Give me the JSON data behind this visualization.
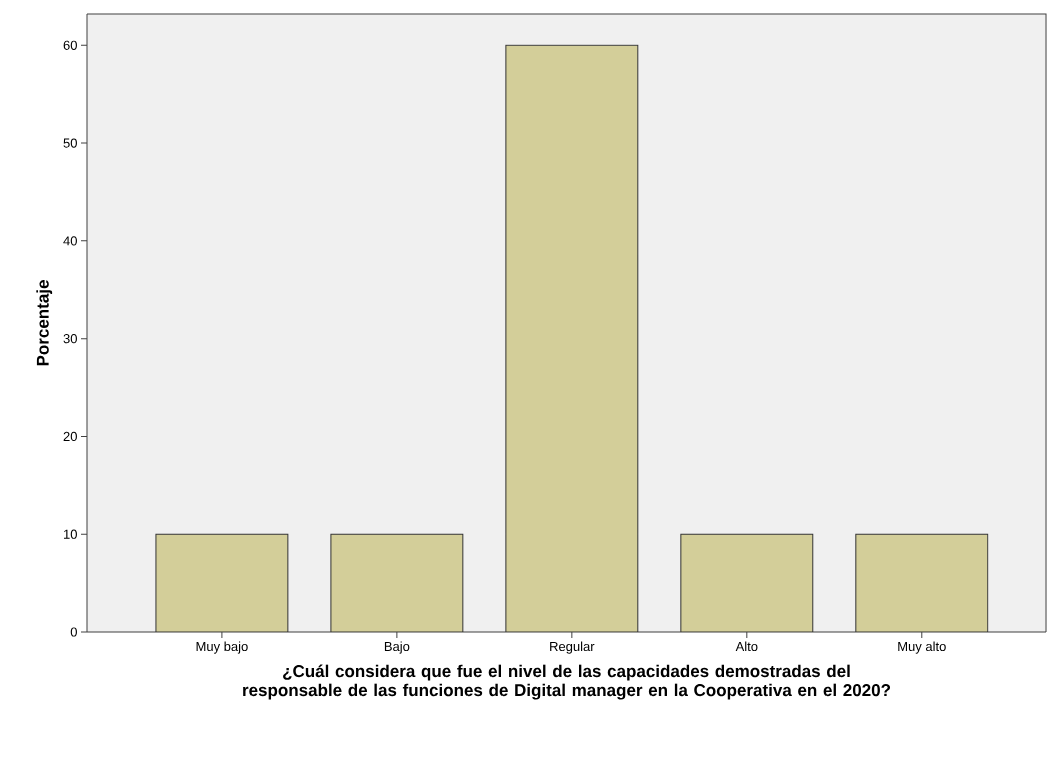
{
  "chart_data": {
    "type": "bar",
    "xlabel": "¿Cuál considera que fue el nivel de las capacidades demostradas del responsable de las funciones de Digital manager en la Cooperativa en el 2020?",
    "ylabel": "Porcentaje",
    "categories": [
      "Muy bajo",
      "Bajo",
      "Regular",
      "Alto",
      "Muy alto"
    ],
    "values": [
      10,
      10,
      60,
      10,
      10
    ],
    "color": "#d3ce99",
    "ylim": [
      0,
      63.2
    ],
    "yticks": [
      0,
      10,
      20,
      30,
      40,
      50,
      60
    ],
    "grid": false
  }
}
